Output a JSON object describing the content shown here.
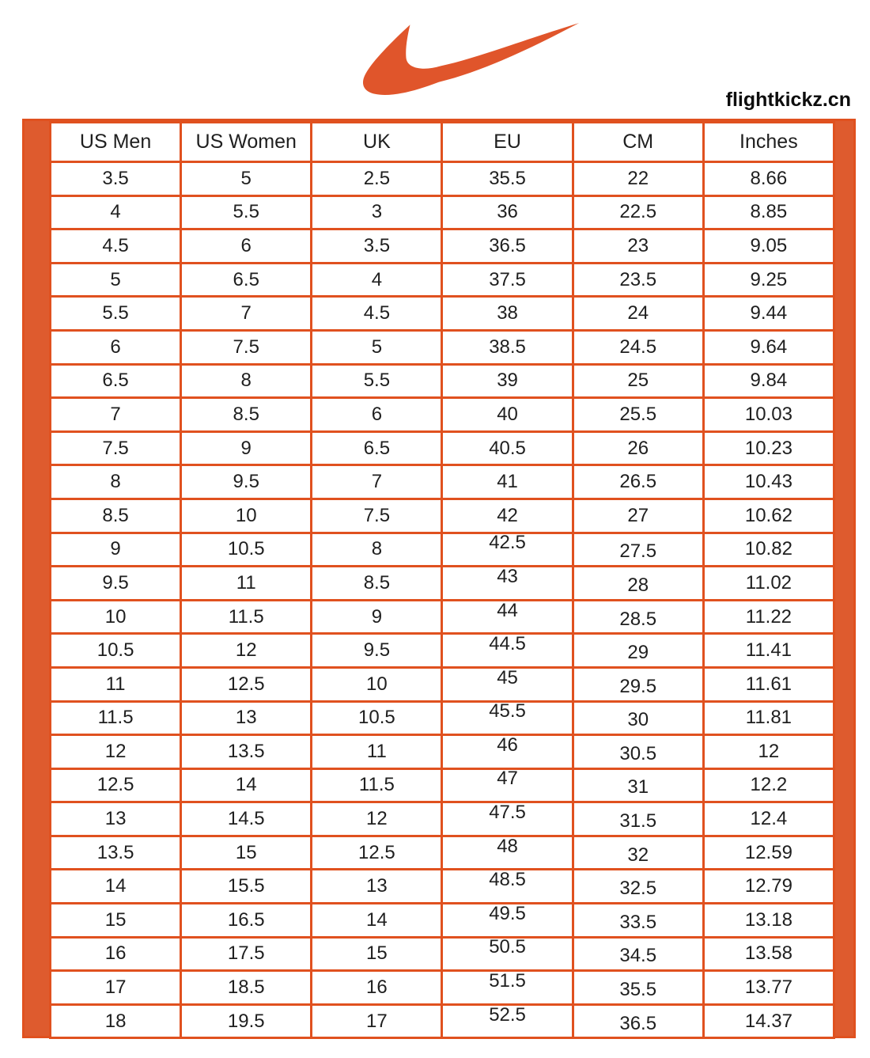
{
  "brand": {
    "logo_icon": "nike-swoosh-icon",
    "logo_color": "#e0552b",
    "site_text": "flightkickz.cn"
  },
  "theme": {
    "grid_line_color": "#e0511f",
    "side_bar_color": "#de5b2e",
    "text_color": "#1f1f1f",
    "background": "#ffffff"
  },
  "chart_data": {
    "type": "table",
    "title": "Nike shoe size conversion chart",
    "columns": [
      "US Men",
      "US Women",
      "UK",
      "EU",
      "CM",
      "Inches"
    ],
    "rows": [
      [
        "3.5",
        "5",
        "2.5",
        "35.5",
        "22",
        "8.66"
      ],
      [
        "4",
        "5.5",
        "3",
        "36",
        "22.5",
        "8.85"
      ],
      [
        "4.5",
        "6",
        "3.5",
        "36.5",
        "23",
        "9.05"
      ],
      [
        "5",
        "6.5",
        "4",
        "37.5",
        "23.5",
        "9.25"
      ],
      [
        "5.5",
        "7",
        "4.5",
        "38",
        "24",
        "9.44"
      ],
      [
        "6",
        "7.5",
        "5",
        "38.5",
        "24.5",
        "9.64"
      ],
      [
        "6.5",
        "8",
        "5.5",
        "39",
        "25",
        "9.84"
      ],
      [
        "7",
        "8.5",
        "6",
        "40",
        "25.5",
        "10.03"
      ],
      [
        "7.5",
        "9",
        "6.5",
        "40.5",
        "26",
        "10.23"
      ],
      [
        "8",
        "9.5",
        "7",
        "41",
        "26.5",
        "10.43"
      ],
      [
        "8.5",
        "10",
        "7.5",
        "42",
        "27",
        "10.62"
      ],
      [
        "9",
        "10.5",
        "8",
        "42.5",
        "27.5",
        "10.82"
      ],
      [
        "9.5",
        "11",
        "8.5",
        "43",
        "28",
        "11.02"
      ],
      [
        "10",
        "11.5",
        "9",
        "44",
        "28.5",
        "11.22"
      ],
      [
        "10.5",
        "12",
        "9.5",
        "44.5",
        "29",
        "11.41"
      ],
      [
        "11",
        "12.5",
        "10",
        "45",
        "29.5",
        "11.61"
      ],
      [
        "11.5",
        "13",
        "10.5",
        "45.5",
        "30",
        "11.81"
      ],
      [
        "12",
        "13.5",
        "11",
        "46",
        "30.5",
        "12"
      ],
      [
        "12.5",
        "14",
        "11.5",
        "47",
        "31",
        "12.2"
      ],
      [
        "13",
        "14.5",
        "12",
        "47.5",
        "31.5",
        "12.4"
      ],
      [
        "13.5",
        "15",
        "12.5",
        "48",
        "32",
        "12.59"
      ],
      [
        "14",
        "15.5",
        "13",
        "48.5",
        "32.5",
        "12.79"
      ],
      [
        "15",
        "16.5",
        "14",
        "49.5",
        "33.5",
        "13.18"
      ],
      [
        "16",
        "17.5",
        "15",
        "50.5",
        "34.5",
        "13.58"
      ],
      [
        "17",
        "18.5",
        "16",
        "51.5",
        "35.5",
        "13.77"
      ],
      [
        "18",
        "19.5",
        "17",
        "52.5",
        "36.5",
        "14.37"
      ]
    ]
  }
}
